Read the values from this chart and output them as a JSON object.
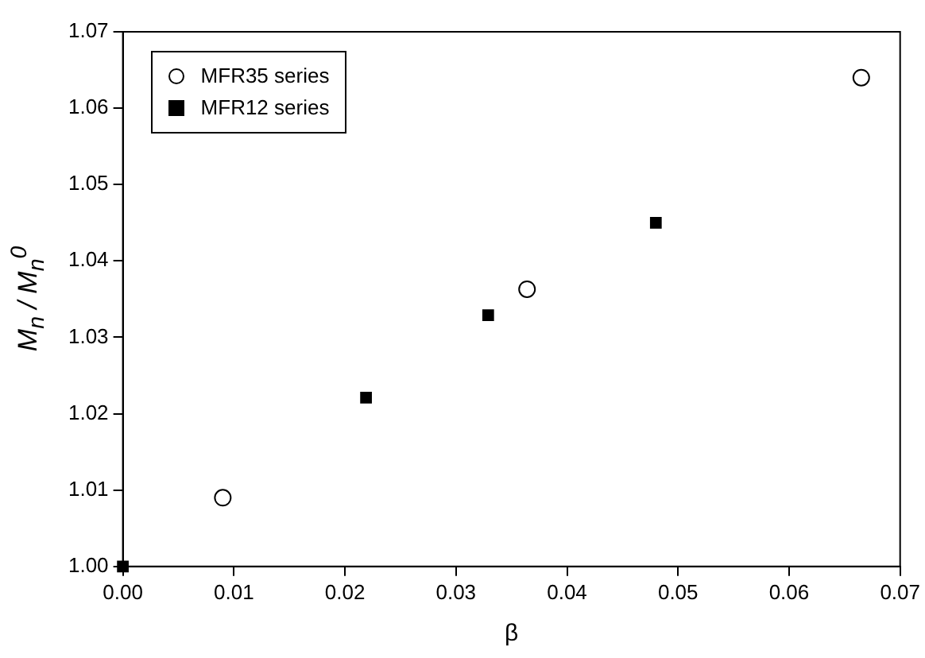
{
  "chart_data": {
    "type": "scatter",
    "xlabel": "β",
    "ylabel": "M$_{n}$ / M$_{n}$$^{0}$",
    "xlim": [
      0,
      0.07
    ],
    "xticks": [
      {
        "value": 0,
        "label": "0.00"
      },
      {
        "value": 0.01,
        "label": "0.01"
      },
      {
        "value": 0.02,
        "label": "0.02"
      },
      {
        "value": 0.03,
        "label": "0.03"
      },
      {
        "value": 0.04,
        "label": "0.04"
      },
      {
        "value": 0.05,
        "label": "0.05"
      },
      {
        "value": 0.06,
        "label": "0.06"
      },
      {
        "value": 0.07,
        "label": "0.07"
      }
    ],
    "ylim": [
      1,
      1.07
    ],
    "yticks": [
      {
        "value": 1,
        "label": "1.00"
      },
      {
        "value": 1.01,
        "label": "1.01"
      },
      {
        "value": 1.02,
        "label": "1.02"
      },
      {
        "value": 1.03,
        "label": "1.03"
      },
      {
        "value": 1.04,
        "label": "1.04"
      },
      {
        "value": 1.05,
        "label": "1.05"
      },
      {
        "value": 1.06,
        "label": "1.06"
      },
      {
        "value": 1.07,
        "label": "1.07"
      }
    ],
    "grid": false,
    "legend": "top left",
    "series": [
      {
        "name": "MFR35 series",
        "color": "#000000",
        "marker": "circle",
        "x": [
          0.009,
          0.0364,
          0.0665
        ],
        "values": [
          1.009,
          1.0363,
          1.064
        ]
      },
      {
        "name": "MFR12 series",
        "color": "#000000",
        "marker": "square",
        "x": [
          0,
          0.0219,
          0.0329,
          0.048
        ],
        "values": [
          1,
          1.0221,
          1.0329,
          1.045
        ]
      }
    ]
  }
}
